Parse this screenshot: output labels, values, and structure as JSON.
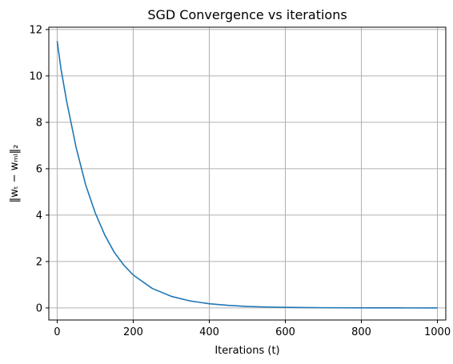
{
  "chart_data": {
    "type": "line",
    "title": "SGD Convergence vs iterations",
    "xlabel": "Iterations (t)",
    "ylabel": "‖wₜ − wₘₗ‖₂",
    "xlim": [
      -22,
      1022
    ],
    "ylim": [
      -0.52,
      12.1
    ],
    "xticks": [
      0,
      200,
      400,
      600,
      800,
      1000
    ],
    "yticks": [
      0,
      2,
      4,
      6,
      8,
      10,
      12
    ],
    "grid": true,
    "legend": "none",
    "series": [
      {
        "color": "#1f77b4",
        "x": [
          0,
          10,
          25,
          50,
          75,
          100,
          125,
          150,
          175,
          200,
          250,
          300,
          350,
          400,
          450,
          500,
          550,
          600,
          650,
          700,
          800,
          900,
          1000
        ],
        "y": [
          11.5,
          10.3,
          8.9,
          6.9,
          5.3,
          4.1,
          3.15,
          2.4,
          1.85,
          1.42,
          0.84,
          0.5,
          0.3,
          0.18,
          0.11,
          0.065,
          0.04,
          0.025,
          0.015,
          0.01,
          0.004,
          0.002,
          0.001
        ]
      }
    ]
  }
}
